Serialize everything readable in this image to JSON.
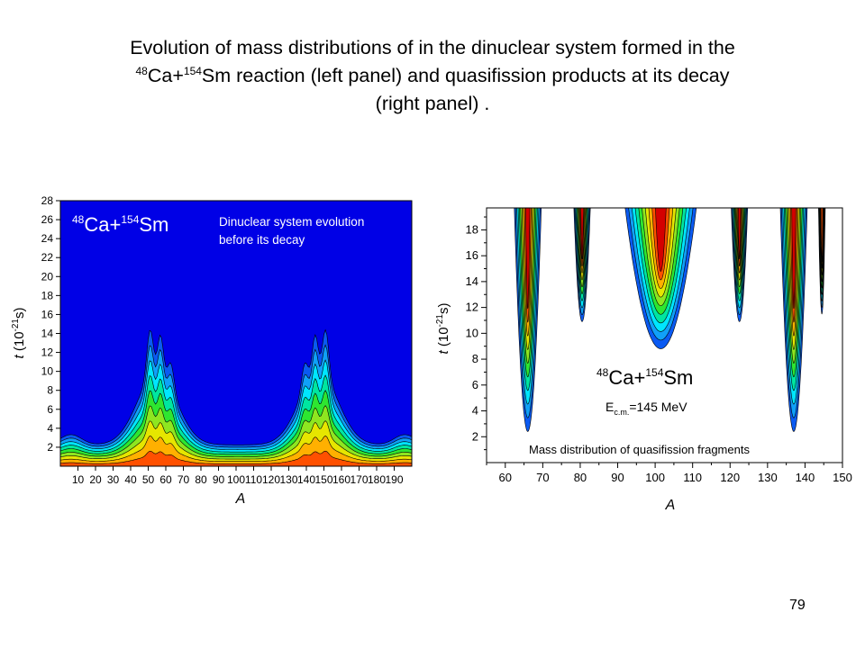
{
  "title": {
    "line1": "Evolution of mass distributions of in the dinuclear system  formed in the",
    "mass1": "48",
    "el1": "Ca+",
    "mass2": "154",
    "line2_rest": "Sm reaction (left panel) and quasifission products at its decay",
    "line3": "(right panel) ."
  },
  "page_number": "79",
  "colors": {
    "levels": [
      "#0000e6",
      "#0a5af2",
      "#10a0f8",
      "#00e6ff",
      "#00e6a0",
      "#2ee630",
      "#8ee620",
      "#e6e600",
      "#ffb000",
      "#ff5000",
      "#d40000"
    ],
    "contour_line": "#000000",
    "frame": "#000000"
  },
  "chart_data": [
    {
      "type": "heatmap",
      "panel": "left",
      "xlabel": "A",
      "ylabel_italic": "t",
      "ylabel_unit_prefix": "(10",
      "ylabel_exp": "-21",
      "ylabel_unit_suffix": "s)",
      "xlim": [
        0,
        200
      ],
      "ylim": [
        0,
        28
      ],
      "xticks": [
        10,
        20,
        30,
        40,
        50,
        60,
        70,
        80,
        90,
        100,
        110,
        120,
        130,
        140,
        150,
        160,
        170,
        180,
        190
      ],
      "yticks": [
        2,
        4,
        6,
        8,
        10,
        12,
        14,
        16,
        18,
        20,
        22,
        24,
        26,
        28
      ],
      "legend_label": {
        "mass1": "48",
        "el1": "Ca+",
        "mass2": "154",
        "el2": "Sm"
      },
      "annotation": [
        "Dinuclear system evolution",
        "before its decay"
      ],
      "colorscale": "jet",
      "grid": false
    },
    {
      "type": "heatmap",
      "panel": "right",
      "xlabel": "A",
      "ylabel_italic": "t",
      "ylabel_unit_prefix": "(10",
      "ylabel_exp": "-21",
      "ylabel_unit_suffix": "s)",
      "xlim": [
        55,
        150
      ],
      "ylim": [
        0,
        19.7
      ],
      "xticks": [
        60,
        70,
        80,
        90,
        100,
        110,
        120,
        130,
        140,
        150
      ],
      "yticks": [
        2,
        4,
        6,
        8,
        10,
        12,
        14,
        16,
        18
      ],
      "legend_label": {
        "mass1": "48",
        "el1": "Ca+",
        "mass2": "154",
        "el2": "Sm"
      },
      "energy_label": {
        "symbol": "E",
        "subscript": "c.m.",
        "value": "=145 MeV"
      },
      "annotation": "Mass distribution of quasifission fragments",
      "colorscale": "jet",
      "grid": false
    }
  ]
}
